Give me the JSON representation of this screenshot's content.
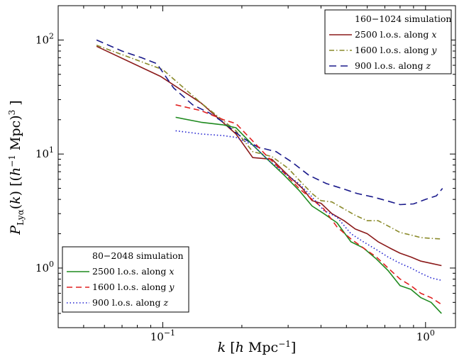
{
  "chart_data": {
    "type": "line",
    "xscale": "log",
    "yscale": "log",
    "xlim": [
      0.04,
      1.3
    ],
    "ylim": [
      0.3,
      200
    ],
    "xlabel": "k [h Mpc⁻¹]",
    "ylabel": "P_Lyα(k)  [(h⁻¹ Mpc)³]",
    "xticks": [
      {
        "value": 0.1,
        "label": "10⁻¹"
      },
      {
        "value": 1,
        "label": "10⁰"
      }
    ],
    "yticks": [
      {
        "value": 1,
        "label": "10⁰"
      },
      {
        "value": 10,
        "label": "10¹"
      },
      {
        "value": 100,
        "label": "10²"
      }
    ],
    "legends": [
      {
        "title": "160−1024 simulation",
        "position": "top-right",
        "entries": [
          {
            "series": "s160x",
            "text": "2500 l.o.s. along x"
          },
          {
            "series": "s160y",
            "text": "1600 l.o.s. along y"
          },
          {
            "series": "s160z",
            "text": "900  l.o.s. along z"
          }
        ]
      },
      {
        "title": "80−2048 simulation",
        "position": "bottom-left",
        "entries": [
          {
            "series": "s80x",
            "text": "2500 l.o.s. along x"
          },
          {
            "series": "s80y",
            "text": "1600 l.o.s. along y"
          },
          {
            "series": "s80z",
            "text": "900  l.o.s. along z"
          }
        ]
      }
    ],
    "series": [
      {
        "id": "s160x",
        "name": "160−1024, 2500 l.o.s. along x",
        "color": "#8b1a1a",
        "dash": "",
        "width": 1.6,
        "x": [
          0.056,
          0.098,
          0.14,
          0.19,
          0.22,
          0.26,
          0.3,
          0.34,
          0.37,
          0.4,
          0.44,
          0.49,
          0.54,
          0.6,
          0.66,
          0.73,
          0.8,
          0.88,
          0.96,
          1.05,
          1.15
        ],
        "y": [
          88,
          48,
          28,
          15,
          9.3,
          9.0,
          6.5,
          5.0,
          3.9,
          3.7,
          3.0,
          2.6,
          2.2,
          2.0,
          1.7,
          1.5,
          1.35,
          1.25,
          1.15,
          1.1,
          1.05
        ]
      },
      {
        "id": "s160y",
        "name": "160−1024, 1600 l.o.s. along y",
        "color": "#8a8a2a",
        "dash": "7,3,1.5,3",
        "width": 1.6,
        "x": [
          0.056,
          0.1,
          0.14,
          0.19,
          0.22,
          0.26,
          0.3,
          0.34,
          0.37,
          0.4,
          0.44,
          0.49,
          0.54,
          0.6,
          0.66,
          0.73,
          0.8,
          0.88,
          0.96,
          1.05,
          1.15
        ],
        "y": [
          90,
          55,
          28,
          16,
          10.5,
          9.5,
          7.5,
          5.5,
          4.5,
          3.9,
          3.8,
          3.3,
          2.9,
          2.6,
          2.6,
          2.3,
          2.05,
          1.95,
          1.85,
          1.82,
          1.8
        ]
      },
      {
        "id": "s160z",
        "name": "160−1024, 900 l.o.s. along z",
        "color": "#1a1a8b",
        "dash": "10,6",
        "width": 1.6,
        "x": [
          0.056,
          0.07,
          0.083,
          0.095,
          0.11,
          0.13,
          0.15,
          0.17,
          0.2,
          0.23,
          0.27,
          0.31,
          0.36,
          0.42,
          0.48,
          0.55,
          0.63,
          0.71,
          0.8,
          0.9,
          1.0,
          1.1,
          1.16
        ],
        "y": [
          100,
          80,
          70,
          62,
          38,
          27,
          23,
          19,
          14,
          11.5,
          10.5,
          8.5,
          6.5,
          5.5,
          5.0,
          4.5,
          4.2,
          3.9,
          3.6,
          3.65,
          4.0,
          4.3,
          5.0
        ]
      },
      {
        "id": "s80x",
        "name": "80−2048, 2500 l.o.s. along x",
        "color": "#1f8a1f",
        "dash": "",
        "width": 1.6,
        "x": [
          0.112,
          0.14,
          0.17,
          0.19,
          0.22,
          0.25,
          0.29,
          0.33,
          0.37,
          0.41,
          0.46,
          0.52,
          0.58,
          0.65,
          0.72,
          0.8,
          0.88,
          0.96,
          1.05,
          1.15
        ],
        "y": [
          21,
          19,
          18,
          17,
          12,
          9.0,
          6.5,
          4.8,
          3.5,
          3.0,
          2.5,
          1.7,
          1.5,
          1.2,
          0.95,
          0.7,
          0.65,
          0.55,
          0.5,
          0.4
        ]
      },
      {
        "id": "s80y",
        "name": "80−2048, 1600 l.o.s. along y",
        "color": "#e02020",
        "dash": "8,5",
        "width": 1.6,
        "x": [
          0.112,
          0.14,
          0.17,
          0.19,
          0.22,
          0.25,
          0.29,
          0.33,
          0.37,
          0.41,
          0.46,
          0.52,
          0.58,
          0.65,
          0.72,
          0.8,
          0.88,
          0.96,
          1.05,
          1.15
        ],
        "y": [
          27,
          24,
          20,
          18.5,
          13,
          9.5,
          6.8,
          5.0,
          4.0,
          3.3,
          2.3,
          1.8,
          1.5,
          1.25,
          1.0,
          0.8,
          0.7,
          0.6,
          0.55,
          0.48
        ]
      },
      {
        "id": "s80z",
        "name": "80−2048, 900 l.o.s. along z",
        "color": "#2020d0",
        "dash": "1.5,3",
        "width": 1.6,
        "x": [
          0.112,
          0.14,
          0.17,
          0.19,
          0.22,
          0.25,
          0.29,
          0.33,
          0.37,
          0.41,
          0.46,
          0.52,
          0.58,
          0.65,
          0.72,
          0.8,
          0.88,
          0.96,
          1.05,
          1.15
        ],
        "y": [
          16,
          15,
          14.5,
          14,
          12,
          9.0,
          6.8,
          5.5,
          4.2,
          3.2,
          2.8,
          2.0,
          1.7,
          1.45,
          1.25,
          1.1,
          1.0,
          0.9,
          0.82,
          0.78
        ]
      }
    ]
  }
}
